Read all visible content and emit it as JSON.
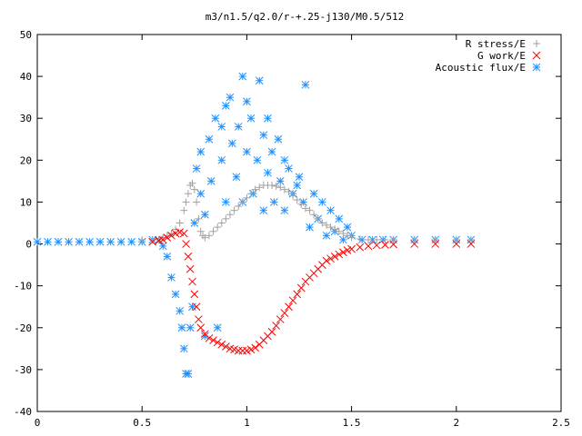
{
  "chart_data": {
    "type": "scatter",
    "title": "m3/n1.5/q2.0/r-+.25-j130/M0.5/512",
    "xlim": [
      0,
      2.5
    ],
    "ylim": [
      -40,
      50
    ],
    "x_ticks": [
      "0",
      "0.5",
      "1",
      "1.5",
      "2",
      "2.5"
    ],
    "x_tick_values": [
      0,
      0.5,
      1,
      1.5,
      2,
      2.5
    ],
    "y_ticks": [
      "-40",
      "-30",
      "-20",
      "-10",
      "0",
      "10",
      "20",
      "30",
      "40",
      "50"
    ],
    "y_tick_values": [
      -40,
      -30,
      -20,
      -10,
      0,
      10,
      20,
      30,
      40,
      50
    ],
    "grid": false,
    "legend_position": "top-right",
    "series": [
      {
        "name": "R stress/E",
        "marker": "plus",
        "color": "#a0a0a0",
        "x": [
          0.5,
          0.55,
          0.58,
          0.6,
          0.62,
          0.64,
          0.66,
          0.68,
          0.7,
          0.71,
          0.72,
          0.73,
          0.74,
          0.75,
          0.76,
          0.77,
          0.78,
          0.79,
          0.8,
          0.82,
          0.84,
          0.86,
          0.88,
          0.9,
          0.92,
          0.94,
          0.96,
          0.98,
          1.0,
          1.02,
          1.04,
          1.06,
          1.08,
          1.1,
          1.12,
          1.14,
          1.16,
          1.18,
          1.2,
          1.22,
          1.24,
          1.26,
          1.28,
          1.3,
          1.32,
          1.34,
          1.36,
          1.38,
          1.4,
          1.42,
          1.44,
          1.46,
          1.48,
          1.5,
          1.54,
          1.58,
          1.62,
          1.66,
          1.7,
          1.8,
          1.9,
          2.0,
          2.07
        ],
        "y": [
          1,
          1,
          1,
          1.5,
          2,
          2.5,
          3.5,
          5,
          8,
          10,
          12,
          14,
          14.5,
          13,
          10,
          6,
          3,
          2,
          1.5,
          2,
          3,
          4,
          5,
          6,
          7,
          8,
          9,
          10,
          11,
          12,
          13,
          13.5,
          14,
          14,
          14,
          13.8,
          13.5,
          13,
          12.5,
          11.5,
          10.5,
          9.5,
          8.5,
          8,
          7,
          6,
          5,
          4.5,
          4,
          3.5,
          3,
          2.5,
          2,
          1.5,
          1.2,
          1,
          1,
          1,
          1,
          1,
          1,
          1,
          1
        ]
      },
      {
        "name": "G work/E",
        "marker": "cross",
        "color": "#ff0000",
        "x": [
          0.55,
          0.58,
          0.6,
          0.62,
          0.64,
          0.66,
          0.68,
          0.7,
          0.71,
          0.72,
          0.73,
          0.74,
          0.75,
          0.76,
          0.77,
          0.78,
          0.8,
          0.82,
          0.84,
          0.86,
          0.88,
          0.9,
          0.92,
          0.94,
          0.96,
          0.98,
          1.0,
          1.02,
          1.04,
          1.06,
          1.08,
          1.1,
          1.12,
          1.14,
          1.16,
          1.18,
          1.2,
          1.22,
          1.24,
          1.26,
          1.28,
          1.3,
          1.32,
          1.34,
          1.36,
          1.38,
          1.4,
          1.42,
          1.44,
          1.46,
          1.48,
          1.5,
          1.54,
          1.58,
          1.62,
          1.66,
          1.7,
          1.8,
          1.9,
          2.0,
          2.07
        ],
        "y": [
          0.5,
          0.8,
          1,
          1.5,
          2,
          2.5,
          2.8,
          2.5,
          0,
          -3,
          -6,
          -9,
          -12,
          -15,
          -18,
          -20,
          -21.5,
          -22.5,
          -23,
          -23.5,
          -24,
          -24.5,
          -25,
          -25.2,
          -25.5,
          -25.5,
          -25.5,
          -25.2,
          -24.8,
          -24,
          -23,
          -22,
          -21,
          -19.5,
          -18,
          -16.5,
          -15,
          -13.5,
          -12,
          -10.5,
          -9,
          -8,
          -7,
          -6,
          -5,
          -4,
          -3.5,
          -3,
          -2.5,
          -2,
          -1.5,
          -1.2,
          -0.8,
          -0.5,
          -0.3,
          -0.2,
          -0.1,
          0,
          0,
          0,
          0
        ]
      },
      {
        "name": "Acoustic flux/E",
        "marker": "star",
        "color": "#1e90ff",
        "x": [
          0,
          0.05,
          0.1,
          0.15,
          0.2,
          0.25,
          0.3,
          0.35,
          0.4,
          0.45,
          0.5,
          0.55,
          0.58,
          0.6,
          0.62,
          0.64,
          0.66,
          0.68,
          0.69,
          0.7,
          0.71,
          0.72,
          0.73,
          0.74,
          0.75,
          0.76,
          0.78,
          0.78,
          0.8,
          0.8,
          0.82,
          0.83,
          0.85,
          0.86,
          0.88,
          0.88,
          0.9,
          0.9,
          0.92,
          0.93,
          0.95,
          0.96,
          0.98,
          0.98,
          1.0,
          1.0,
          1.02,
          1.03,
          1.05,
          1.06,
          1.08,
          1.08,
          1.1,
          1.1,
          1.12,
          1.13,
          1.15,
          1.16,
          1.18,
          1.18,
          1.2,
          1.22,
          1.24,
          1.25,
          1.27,
          1.28,
          1.3,
          1.32,
          1.34,
          1.36,
          1.38,
          1.4,
          1.42,
          1.44,
          1.46,
          1.48,
          1.5,
          1.55,
          1.6,
          1.65,
          1.7,
          1.8,
          1.9,
          2.0,
          2.07
        ],
        "y": [
          0.5,
          0.5,
          0.5,
          0.5,
          0.5,
          0.5,
          0.5,
          0.5,
          0.5,
          0.5,
          0.5,
          1,
          1,
          -0.5,
          -3,
          -8,
          -12,
          -16,
          -20,
          -25,
          -31,
          -31,
          -20,
          -15,
          5,
          18,
          12,
          22,
          -22,
          7,
          25,
          15,
          30,
          -20,
          20,
          28,
          33,
          10,
          35,
          24,
          16,
          28,
          40,
          10,
          34,
          22,
          30,
          12,
          20,
          39,
          26,
          8,
          17,
          30,
          22,
          10,
          25,
          15,
          20,
          8,
          18,
          12,
          14,
          16,
          10,
          38,
          4,
          12,
          6,
          10,
          2,
          8,
          3,
          6,
          1,
          4,
          2,
          1,
          1,
          1,
          1,
          1,
          1,
          1,
          1
        ]
      }
    ]
  }
}
